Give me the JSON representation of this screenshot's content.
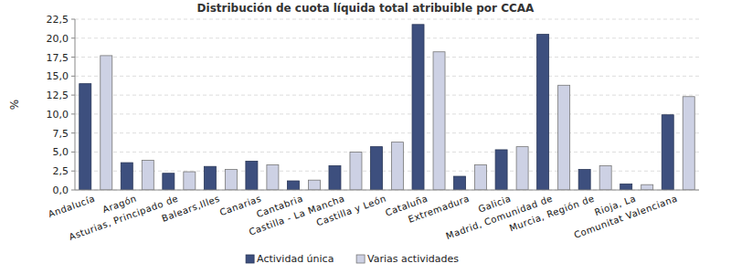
{
  "chart_data": {
    "type": "bar",
    "title": "Distribución de cuota líquida total atribuible por CCAA",
    "y_label": "%",
    "categories": [
      "Andalucía",
      "Aragón",
      "Asturias, Principado de",
      "Balears,Illes",
      "Canarias",
      "Cantabria",
      "Castilla - La Mancha",
      "Castilla y León",
      "Cataluña",
      "Extremadura",
      "Galicia",
      "Madrid, Comunidad de",
      "Murcia, Región de",
      "Rioja, La",
      "Comunitat Valenciana"
    ],
    "series": [
      {
        "name": "Actividad única",
        "color": "#3d4f7e",
        "values": [
          14.0,
          3.6,
          2.2,
          3.1,
          3.8,
          1.2,
          3.2,
          5.7,
          21.8,
          1.8,
          5.3,
          20.5,
          2.7,
          0.8,
          9.9
        ]
      },
      {
        "name": "Varias actividades",
        "color": "#cdd1e4",
        "values": [
          17.7,
          3.9,
          2.4,
          2.7,
          3.3,
          1.3,
          5.0,
          6.3,
          18.2,
          3.3,
          5.7,
          13.8,
          3.2,
          0.7,
          12.3
        ]
      }
    ],
    "ylim": [
      0,
      22.5
    ],
    "yticks": [
      {
        "value": 0,
        "label": "0,0"
      },
      {
        "value": 2.5,
        "label": "2,5"
      },
      {
        "value": 5,
        "label": "5,0"
      },
      {
        "value": 7.5,
        "label": "7,5"
      },
      {
        "value": 10,
        "label": "10,0"
      },
      {
        "value": 12.5,
        "label": "12,5"
      },
      {
        "value": 15,
        "label": "15,0"
      },
      {
        "value": 17.5,
        "label": "17,5"
      },
      {
        "value": 20,
        "label": "20,0"
      },
      {
        "value": 22.5,
        "label": "22,5"
      }
    ],
    "grid": true,
    "legend": "bottom"
  }
}
